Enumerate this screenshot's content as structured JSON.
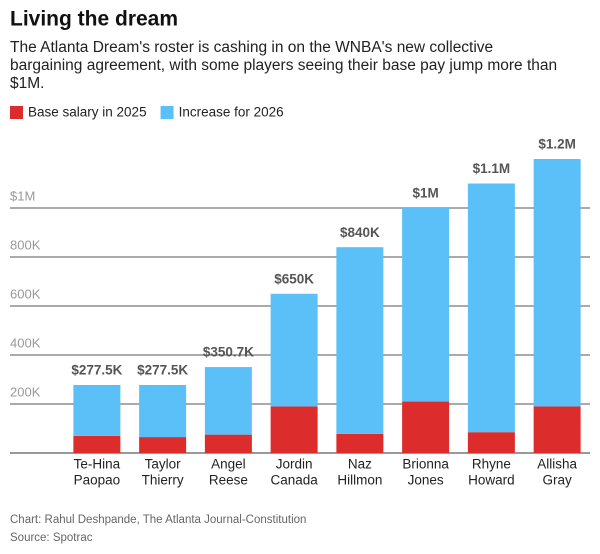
{
  "chart_data": {
    "type": "stacked-bar",
    "title": "Living the dream",
    "subtitle": [
      "The Atlanta Dream's roster is cashing in on the WNBA's new collective",
      "bargaining agreement, with some players seeing their base pay jump more than",
      "$1M."
    ],
    "categories": [
      [
        "Te-Hina",
        "Paopao"
      ],
      [
        "Taylor",
        "Thierry"
      ],
      [
        "Angel",
        "Reese"
      ],
      [
        "Jordin",
        "Canada"
      ],
      [
        "Naz",
        "Hillmon"
      ],
      [
        "Brionna",
        "Jones"
      ],
      [
        "Rhyne",
        "Howard"
      ],
      [
        "Allisha",
        "Gray"
      ]
    ],
    "series": [
      {
        "name": "Base salary in 2025",
        "color": "#dd2c2c",
        "values": [
          70,
          65,
          75,
          190,
          78,
          210,
          85,
          190
        ]
      },
      {
        "name": "Increase for 2026",
        "color": "#5bc0f8",
        "values": [
          207.5,
          212.5,
          275.7,
          460,
          762,
          790,
          1015,
          1010
        ]
      }
    ],
    "totals": [
      277.5,
      277.5,
      350.7,
      650,
      840,
      1000,
      1100,
      1200
    ],
    "totals_value_labels": [
      "$277.5K",
      "$277.5K",
      "$350.7K",
      "$650K",
      "$840K",
      "$1M",
      "$1.1M",
      "$1.2M"
    ],
    "ylim": [
      0,
      1200
    ],
    "yticks": [
      {
        "value": 200,
        "label": "200K"
      },
      {
        "value": 400,
        "label": "400K"
      },
      {
        "value": 600,
        "label": "600K"
      },
      {
        "value": 800,
        "label": "800K"
      },
      {
        "value": 1000,
        "label": "$1M"
      }
    ],
    "grid": true,
    "footer": [
      "Chart: Rahul Deshpande, The Atlanta Journal-Constitution",
      "Source: Spotrac"
    ]
  }
}
